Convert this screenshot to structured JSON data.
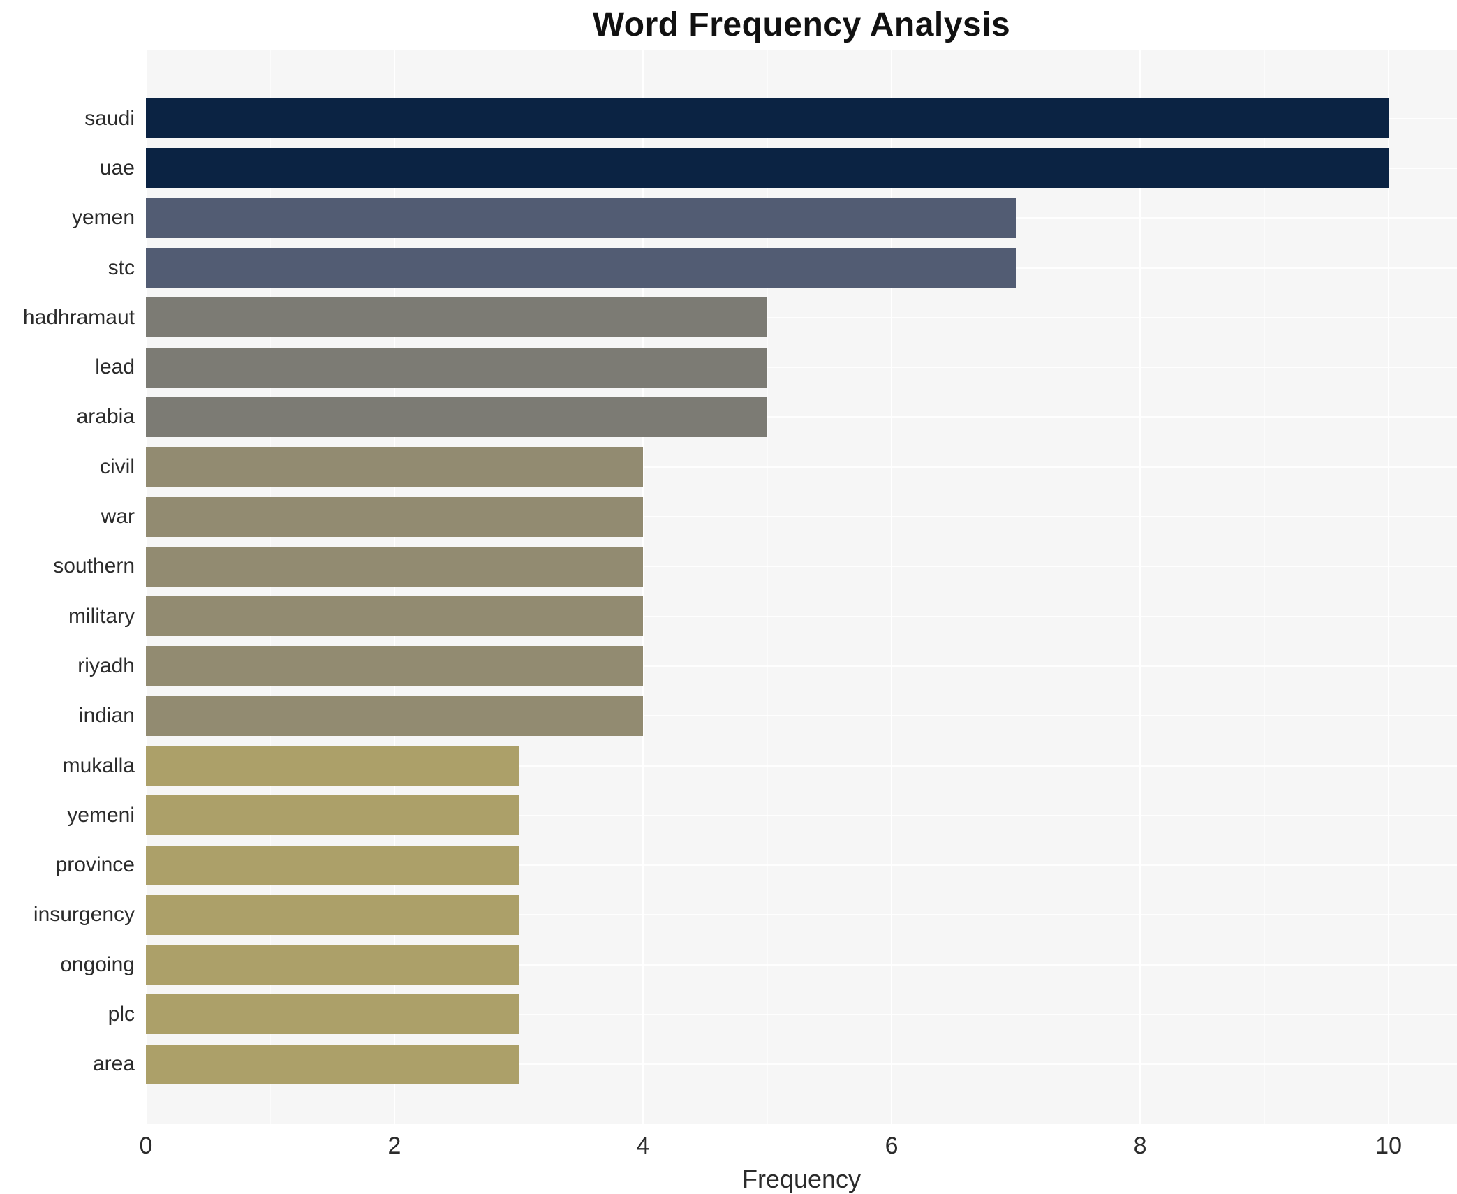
{
  "chart_data": {
    "type": "bar",
    "orientation": "horizontal",
    "title": "Word Frequency Analysis",
    "xlabel": "Frequency",
    "ylabel": "",
    "categories": [
      "saudi",
      "uae",
      "yemen",
      "stc",
      "hadhramaut",
      "lead",
      "arabia",
      "civil",
      "war",
      "southern",
      "military",
      "riyadh",
      "indian",
      "mukalla",
      "yemeni",
      "province",
      "insurgency",
      "ongoing",
      "plc",
      "area"
    ],
    "values": [
      10,
      10,
      7,
      7,
      5,
      5,
      5,
      4,
      4,
      4,
      4,
      4,
      4,
      3,
      3,
      3,
      3,
      3,
      3,
      3
    ],
    "bar_colors": [
      "#0b2343",
      "#0b2343",
      "#525c73",
      "#525c73",
      "#7c7b74",
      "#7c7b74",
      "#7c7b74",
      "#928b71",
      "#928b71",
      "#928b71",
      "#928b71",
      "#928b71",
      "#928b71",
      "#aca069",
      "#aca069",
      "#aca069",
      "#aca069",
      "#aca069",
      "#aca069",
      "#aca069"
    ],
    "value_color_map": {
      "10": "#0b2343",
      "7": "#525c73",
      "5": "#7c7b74",
      "4": "#928b71",
      "3": "#aca069"
    },
    "xlim": [
      0,
      10.55
    ],
    "xticks": [
      0,
      2,
      4,
      6,
      8,
      10
    ],
    "xticks_minor": [
      1,
      3,
      5,
      7,
      9
    ],
    "grid": true,
    "legend_position": "none",
    "panel_bg": "#f6f6f6",
    "grid_color": "#ffffff"
  }
}
